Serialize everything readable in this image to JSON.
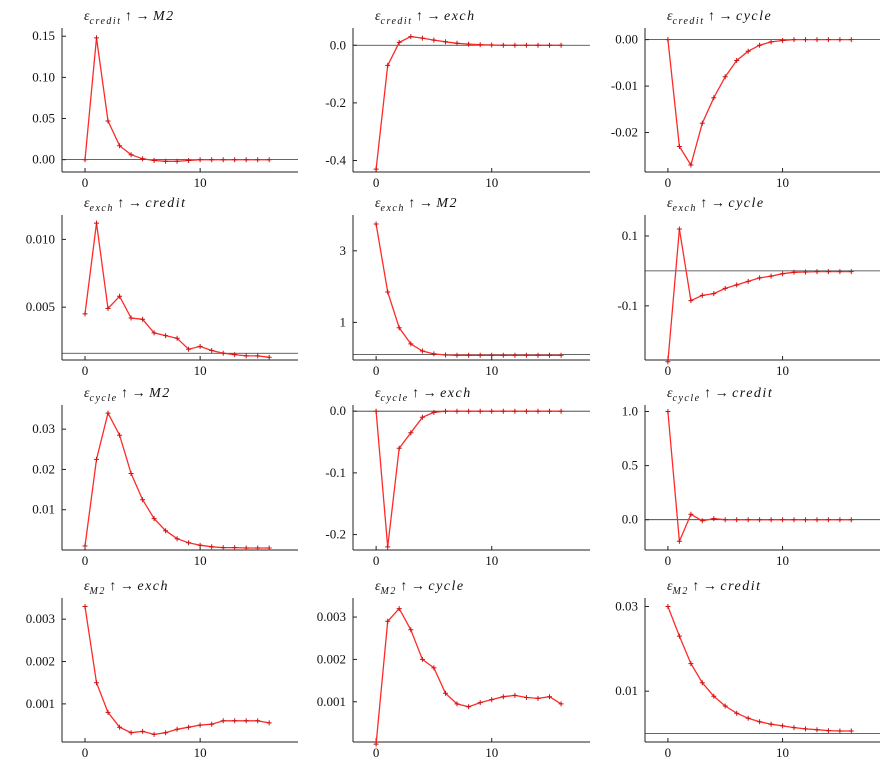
{
  "chart_data": [
    {
      "type": "line",
      "title": {
        "eps": "ε",
        "sub": "credit",
        "arrow": "↑ →",
        "var": "M2"
      },
      "x": [
        0,
        1,
        2,
        3,
        4,
        5,
        6,
        7,
        8,
        9,
        10,
        11,
        12,
        13,
        14,
        15,
        16
      ],
      "series": [
        {
          "values": [
            0,
            0.148,
            0.047,
            0.017,
            0.006,
            0.001,
            -0.001,
            -0.002,
            -0.002,
            -0.001,
            0,
            0,
            0,
            0,
            0,
            0,
            0
          ]
        }
      ],
      "xlim": [
        -2,
        18.5
      ],
      "ylim": [
        -0.015,
        0.16
      ],
      "xticks": [
        0,
        10
      ],
      "yticks": [
        0,
        0.05,
        0.1,
        0.15
      ],
      "ytick_labels": [
        "0.00",
        "0.05",
        "0.10",
        "0.15"
      ],
      "zero_line": true
    },
    {
      "type": "line",
      "title": {
        "eps": "ε",
        "sub": "credit",
        "arrow": "↑ →",
        "var": "exch"
      },
      "x": [
        0,
        1,
        2,
        3,
        4,
        5,
        6,
        7,
        8,
        9,
        10,
        11,
        12,
        13,
        14,
        15,
        16
      ],
      "series": [
        {
          "values": [
            -0.43,
            -0.07,
            0.01,
            0.03,
            0.025,
            0.018,
            0.012,
            0.007,
            0.004,
            0.002,
            0.001,
            0,
            0,
            0,
            0,
            0,
            0
          ]
        }
      ],
      "xlim": [
        -2,
        18.5
      ],
      "ylim": [
        -0.44,
        0.06
      ],
      "xticks": [
        0,
        10
      ],
      "yticks": [
        -0.4,
        -0.2,
        0
      ],
      "ytick_labels": [
        "-0.4",
        "-0.2",
        "0.0"
      ],
      "zero_line": true
    },
    {
      "type": "line",
      "title": {
        "eps": "ε",
        "sub": "credit",
        "arrow": "↑ →",
        "var": "cycle"
      },
      "x": [
        0,
        1,
        2,
        3,
        4,
        5,
        6,
        7,
        8,
        9,
        10,
        11,
        12,
        13,
        14,
        15,
        16
      ],
      "series": [
        {
          "values": [
            0,
            -0.023,
            -0.027,
            -0.018,
            -0.0125,
            -0.008,
            -0.0045,
            -0.0025,
            -0.0012,
            -0.0005,
            -0.0002,
            0,
            0,
            0,
            0,
            0,
            0
          ]
        }
      ],
      "xlim": [
        -2,
        18.5
      ],
      "ylim": [
        -0.0285,
        0.0025
      ],
      "xticks": [
        0,
        10
      ],
      "yticks": [
        -0.02,
        -0.01,
        0
      ],
      "ytick_labels": [
        "-0.02",
        "-0.01",
        "0.00"
      ],
      "zero_line": true
    },
    {
      "type": "line",
      "title": {
        "eps": "ε",
        "sub": "exch",
        "arrow": "↑ →",
        "var": "credit"
      },
      "x": [
        0,
        1,
        2,
        3,
        4,
        5,
        6,
        7,
        8,
        9,
        10,
        11,
        12,
        13,
        14,
        15,
        16
      ],
      "series": [
        {
          "values": [
            0.0045,
            0.0112,
            0.0049,
            0.0058,
            0.0042,
            0.0041,
            0.0031,
            0.0029,
            0.0027,
            0.0019,
            0.0021,
            0.0018,
            0.0016,
            0.0015,
            0.0014,
            0.0014,
            0.0013
          ]
        }
      ],
      "xlim": [
        -2,
        18.5
      ],
      "ylim": [
        0.0011,
        0.0118
      ],
      "xticks": [
        0,
        10
      ],
      "yticks": [
        0.005,
        0.01
      ],
      "ytick_labels": [
        "0.005",
        "0.010"
      ],
      "zero_line": false,
      "hline": 0.0016
    },
    {
      "type": "line",
      "title": {
        "eps": "ε",
        "sub": "exch",
        "arrow": "↑ →",
        "var": "M2"
      },
      "x": [
        0,
        1,
        2,
        3,
        4,
        5,
        6,
        7,
        8,
        9,
        10,
        11,
        12,
        13,
        14,
        15,
        16
      ],
      "series": [
        {
          "values": [
            3.75,
            1.85,
            0.85,
            0.4,
            0.2,
            0.12,
            0.09,
            0.08,
            0.08,
            0.08,
            0.08,
            0.08,
            0.08,
            0.08,
            0.08,
            0.08,
            0.08
          ]
        }
      ],
      "xlim": [
        -2,
        18.5
      ],
      "ylim": [
        -0.05,
        4.0
      ],
      "xticks": [
        0,
        10
      ],
      "yticks": [
        1,
        3
      ],
      "ytick_labels": [
        "1",
        "3"
      ],
      "zero_line": false,
      "hline": 0.1
    },
    {
      "type": "line",
      "title": {
        "eps": "ε",
        "sub": "exch",
        "arrow": "↑ →",
        "var": "cycle"
      },
      "x": [
        0,
        1,
        2,
        3,
        4,
        5,
        6,
        7,
        8,
        9,
        10,
        11,
        12,
        13,
        14,
        15,
        16
      ],
      "series": [
        {
          "values": [
            -0.26,
            0.12,
            -0.085,
            -0.07,
            -0.065,
            -0.05,
            -0.04,
            -0.03,
            -0.02,
            -0.015,
            -0.008,
            -0.004,
            -0.003,
            -0.002,
            -0.002,
            -0.002,
            -0.002
          ]
        }
      ],
      "xlim": [
        -2,
        18.5
      ],
      "ylim": [
        -0.255,
        0.16
      ],
      "xticks": [
        0,
        10
      ],
      "yticks": [
        -0.1,
        0.1
      ],
      "ytick_labels": [
        "-0.1",
        "0.1"
      ],
      "zero_line": false,
      "hline": 0
    },
    {
      "type": "line",
      "title": {
        "eps": "ε",
        "sub": "cycle",
        "arrow": "↑ →",
        "var": "M2"
      },
      "x": [
        0,
        1,
        2,
        3,
        4,
        5,
        6,
        7,
        8,
        9,
        10,
        11,
        12,
        13,
        14,
        15,
        16
      ],
      "series": [
        {
          "values": [
            0.001,
            0.0225,
            0.034,
            0.0285,
            0.019,
            0.0125,
            0.0078,
            0.0048,
            0.0028,
            0.0018,
            0.0012,
            0.0008,
            0.0006,
            0.0006,
            0.0005,
            0.0005,
            0.0005
          ]
        }
      ],
      "xlim": [
        -2,
        18.5
      ],
      "ylim": [
        0,
        0.036
      ],
      "xticks": [
        0,
        10
      ],
      "yticks": [
        0.01,
        0.02,
        0.03
      ],
      "ytick_labels": [
        "0.01",
        "0.02",
        "0.03"
      ],
      "zero_line": false
    },
    {
      "type": "line",
      "title": {
        "eps": "ε",
        "sub": "cycle",
        "arrow": "↑ →",
        "var": "exch"
      },
      "x": [
        0,
        1,
        2,
        3,
        4,
        5,
        6,
        7,
        8,
        9,
        10,
        11,
        12,
        13,
        14,
        15,
        16
      ],
      "series": [
        {
          "values": [
            0,
            -0.22,
            -0.06,
            -0.035,
            -0.01,
            -0.002,
            0,
            0,
            0,
            0,
            0,
            0,
            0,
            0,
            0,
            0,
            0
          ]
        }
      ],
      "xlim": [
        -2,
        18.5
      ],
      "ylim": [
        -0.225,
        0.01
      ],
      "xticks": [
        0,
        10
      ],
      "yticks": [
        -0.2,
        -0.1,
        0
      ],
      "ytick_labels": [
        "-0.2",
        "-0.1",
        "0.0"
      ],
      "zero_line": true
    },
    {
      "type": "line",
      "title": {
        "eps": "ε",
        "sub": "cycle",
        "arrow": "↑ →",
        "var": "credit"
      },
      "x": [
        0,
        1,
        2,
        3,
        4,
        5,
        6,
        7,
        8,
        9,
        10,
        11,
        12,
        13,
        14,
        15,
        16
      ],
      "series": [
        {
          "values": [
            1.0,
            -0.2,
            0.05,
            -0.01,
            0.01,
            0,
            0,
            0,
            0,
            0,
            0,
            0,
            0,
            0,
            0,
            0,
            0
          ]
        }
      ],
      "xlim": [
        -2,
        18.5
      ],
      "ylim": [
        -0.28,
        1.06
      ],
      "xticks": [
        0,
        10
      ],
      "yticks": [
        0,
        0.5,
        1
      ],
      "ytick_labels": [
        "0.0",
        "0.5",
        "1.0"
      ],
      "zero_line": true
    },
    {
      "type": "line",
      "title": {
        "eps": "ε",
        "sub": "M2",
        "arrow": "↑ →",
        "var": "exch"
      },
      "x": [
        0,
        1,
        2,
        3,
        4,
        5,
        6,
        7,
        8,
        9,
        10,
        11,
        12,
        13,
        14,
        15,
        16
      ],
      "series": [
        {
          "values": [
            0.0033,
            0.0015,
            0.0008,
            0.00045,
            0.00032,
            0.00035,
            0.00028,
            0.00032,
            0.0004,
            0.00045,
            0.0005,
            0.00052,
            0.0006,
            0.0006,
            0.0006,
            0.0006,
            0.00055
          ]
        }
      ],
      "xlim": [
        -2,
        18.5
      ],
      "ylim": [
        0.0001,
        0.0035
      ],
      "xticks": [
        0,
        10
      ],
      "yticks": [
        0.001,
        0.002,
        0.003
      ],
      "ytick_labels": [
        "0.001",
        "0.002",
        "0.003"
      ],
      "zero_line": false
    },
    {
      "type": "line",
      "title": {
        "eps": "ε",
        "sub": "M2",
        "arrow": "↑ →",
        "var": "cycle"
      },
      "x": [
        0,
        1,
        2,
        3,
        4,
        5,
        6,
        7,
        8,
        9,
        10,
        11,
        12,
        13,
        14,
        15,
        16
      ],
      "series": [
        {
          "values": [
            0.0,
            0.0029,
            0.0032,
            0.0027,
            0.002,
            0.0018,
            0.0012,
            0.00095,
            0.00088,
            0.00098,
            0.00105,
            0.00112,
            0.00115,
            0.0011,
            0.00108,
            0.00112,
            0.00095
          ]
        }
      ],
      "xlim": [
        -2,
        18.5
      ],
      "ylim": [
        5e-05,
        0.00345
      ],
      "xticks": [
        0,
        10
      ],
      "yticks": [
        0.001,
        0.002,
        0.003
      ],
      "ytick_labels": [
        "0.001",
        "0.002",
        "0.003"
      ],
      "zero_line": false
    },
    {
      "type": "line",
      "title": {
        "eps": "ε",
        "sub": "M2",
        "arrow": "↑ →",
        "var": "credit"
      },
      "x": [
        0,
        1,
        2,
        3,
        4,
        5,
        6,
        7,
        8,
        9,
        10,
        11,
        12,
        13,
        14,
        15,
        16
      ],
      "series": [
        {
          "values": [
            0.03,
            0.023,
            0.0165,
            0.012,
            0.0088,
            0.0065,
            0.0048,
            0.0036,
            0.0028,
            0.0022,
            0.0018,
            0.0014,
            0.0011,
            0.0009,
            0.0007,
            0.0006,
            0.0006
          ]
        }
      ],
      "xlim": [
        -2,
        18.5
      ],
      "ylim": [
        -0.002,
        0.032
      ],
      "xticks": [
        0,
        10
      ],
      "yticks": [
        0.01,
        0.03
      ],
      "ytick_labels": [
        "0.01",
        "0.03"
      ],
      "zero_line": false,
      "hline": 0.0
    }
  ]
}
